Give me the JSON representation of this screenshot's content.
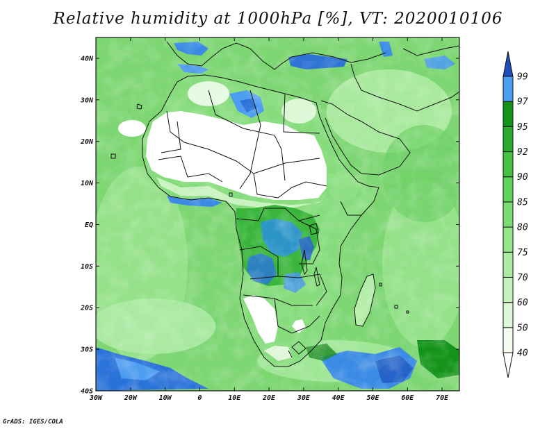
{
  "title": "Relative humidity at 1000hPa [%], VT: 2020010106",
  "credit": "GrADS: IGES/COLA",
  "map": {
    "lon_range": [
      -30,
      75
    ],
    "lat_range": [
      -40,
      45
    ],
    "lon_ticks": [
      {
        "value": -30,
        "label": "30W"
      },
      {
        "value": -20,
        "label": "20W"
      },
      {
        "value": -10,
        "label": "10W"
      },
      {
        "value": 0,
        "label": "0"
      },
      {
        "value": 10,
        "label": "10E"
      },
      {
        "value": 20,
        "label": "20E"
      },
      {
        "value": 30,
        "label": "30E"
      },
      {
        "value": 40,
        "label": "40E"
      },
      {
        "value": 50,
        "label": "50E"
      },
      {
        "value": 60,
        "label": "60E"
      },
      {
        "value": 70,
        "label": "70E"
      }
    ],
    "lat_ticks": [
      {
        "value": 40,
        "label": "40N"
      },
      {
        "value": 30,
        "label": "30N"
      },
      {
        "value": 20,
        "label": "20N"
      },
      {
        "value": 10,
        "label": "10N"
      },
      {
        "value": 0,
        "label": "EQ"
      },
      {
        "value": -10,
        "label": "10S"
      },
      {
        "value": -20,
        "label": "20S"
      },
      {
        "value": -30,
        "label": "30S"
      },
      {
        "value": -40,
        "label": "40S"
      }
    ]
  },
  "colorbar": {
    "levels": [
      "40",
      "50",
      "60",
      "70",
      "75",
      "80",
      "85",
      "90",
      "92",
      "95",
      "97",
      "99"
    ],
    "colors": [
      "#f2fdf0",
      "#dcf8d6",
      "#c6f2bd",
      "#aeeca4",
      "#95e58b",
      "#7cdc73",
      "#62d25a",
      "#45c242",
      "#2aaa2e",
      "#139319",
      "#4c9cf0",
      "#2a72d8",
      "#1d4db8"
    ],
    "below_color": "#ffffff",
    "above_color": "#1d4db8"
  }
}
